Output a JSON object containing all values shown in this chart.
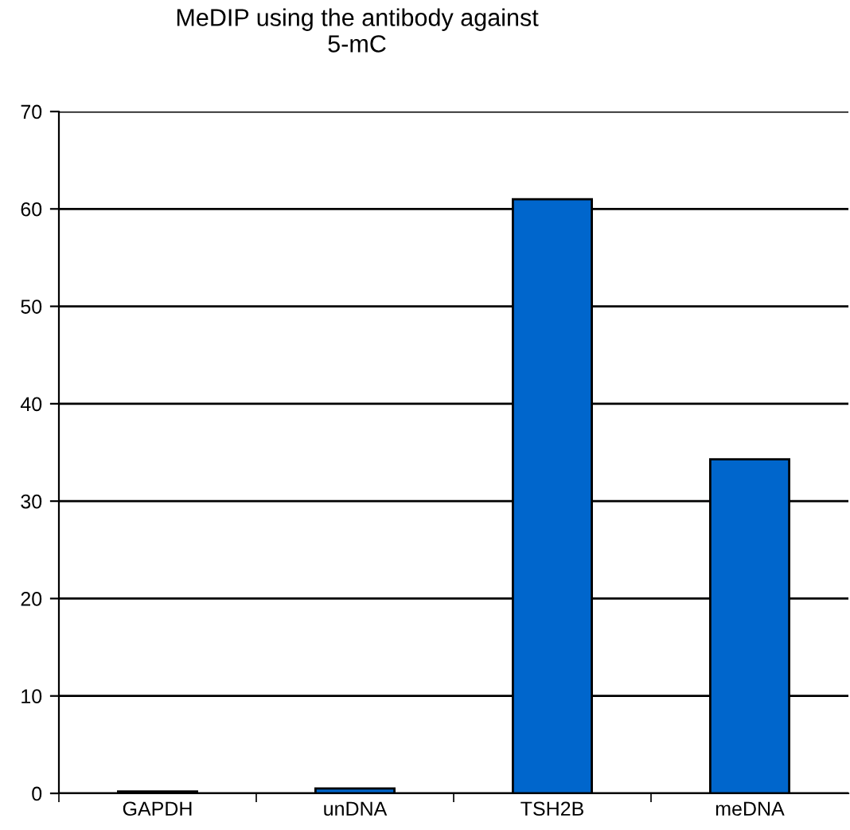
{
  "chart_data": {
    "type": "bar",
    "title": "MeDIP using the antibody against\n5-mC",
    "categories": [
      "GAPDH",
      "unDNA",
      "TSH2B",
      "meDNA"
    ],
    "values": [
      0.2,
      0.5,
      61,
      34.3
    ],
    "color": "#0066cc",
    "ylim": [
      0,
      70
    ],
    "yticks": [
      0,
      10,
      20,
      30,
      40,
      50,
      60,
      70
    ],
    "grid": "y",
    "legend": false
  }
}
